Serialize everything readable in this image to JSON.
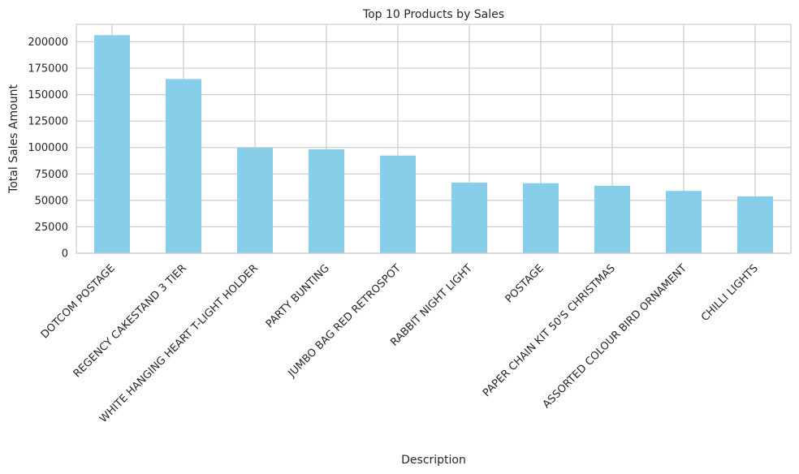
{
  "chart_data": {
    "type": "bar",
    "title": "Top 10 Products by Sales",
    "xlabel": "Description",
    "ylabel": "Total Sales Amount",
    "categories": [
      "DOTCOM POSTAGE",
      "REGENCY CAKESTAND 3 TIER",
      "WHITE HANGING HEART T-LIGHT HOLDER",
      "PARTY BUNTING",
      "JUMBO BAG RED RETROSPOT",
      "RABBIT NIGHT LIGHT",
      "POSTAGE",
      "PAPER CHAIN KIT 50'S CHRISTMAS",
      "ASSORTED COLOUR BIRD ORNAMENT",
      "CHILLI LIGHTS"
    ],
    "values": [
      206245,
      164762,
      99668,
      98302,
      92356,
      66756,
      66230,
      63791,
      58960,
      53768
    ],
    "ylim": [
      0,
      216500
    ],
    "yticks": [
      0,
      25000,
      50000,
      75000,
      100000,
      125000,
      150000,
      175000,
      200000
    ],
    "grid": true,
    "bar_color": "#87ceeb",
    "grid_color": "#cccccc"
  }
}
